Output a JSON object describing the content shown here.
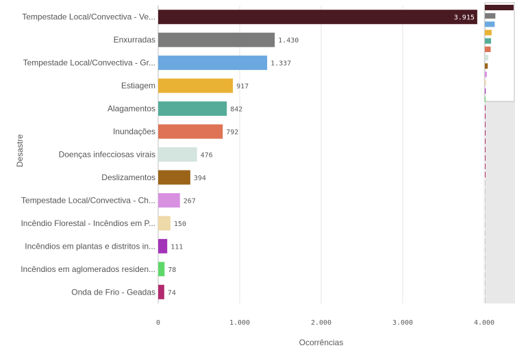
{
  "chart_data": {
    "type": "bar",
    "orientation": "horizontal",
    "ylabel": "Desastre",
    "xlabel": "Ocorrências",
    "xlim": [
      0,
      4000
    ],
    "xticks": [
      {
        "value": 0,
        "label": "0"
      },
      {
        "value": 1000,
        "label": "1.000"
      },
      {
        "value": 2000,
        "label": "2.000"
      },
      {
        "value": 3000,
        "label": "3.000"
      },
      {
        "value": 4000,
        "label": "4.000"
      }
    ],
    "grid": true,
    "categories": [
      "Tempestade Local/Convectiva - Ve...",
      "Enxurradas",
      "Tempestade Local/Convectiva - Gr...",
      "Estiagem",
      "Alagamentos",
      "Inundações",
      "Doenças infecciosas virais",
      "Deslizamentos",
      "Tempestade Local/Convectiva - Ch...",
      "Incêndio Florestal - Incêndios em P...",
      "Incêndios em plantas e distritos in...",
      "Incêndios em aglomerados residen...",
      "Onda de Frio - Geadas"
    ],
    "values": [
      3915,
      1430,
      1337,
      917,
      842,
      792,
      476,
      394,
      267,
      150,
      111,
      78,
      74
    ],
    "value_labels": [
      "3.915",
      "1.430",
      "1.337",
      "917",
      "842",
      "792",
      "476",
      "394",
      "267",
      "150",
      "111",
      "78",
      "74"
    ],
    "colors": [
      "#4a1a22",
      "#7b7b7b",
      "#6aa8df",
      "#e9b234",
      "#55ac98",
      "#de7356",
      "#d4e4df",
      "#9b6418",
      "#d891e0",
      "#eed9a8",
      "#a333b7",
      "#5fd86a",
      "#b22a6e"
    ],
    "minimap_values": [
      3915,
      1430,
      1337,
      917,
      842,
      792,
      476,
      394,
      267,
      150,
      111,
      78,
      74,
      45,
      38,
      30,
      24,
      18,
      12,
      8,
      5
    ]
  }
}
